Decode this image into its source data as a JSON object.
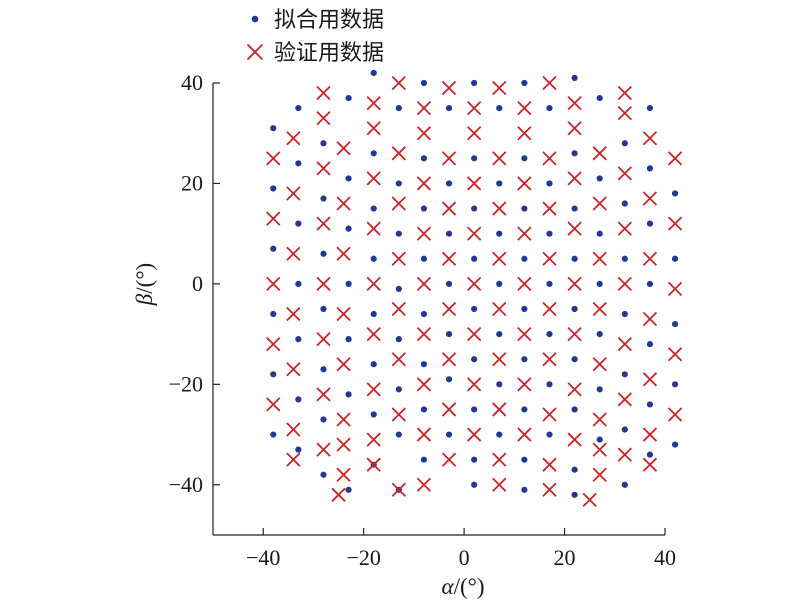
{
  "chart_data": {
    "type": "scatter",
    "xlabel_symbol": "α",
    "xlabel_unit": "/(°)",
    "ylabel_symbol": "β",
    "ylabel_unit": "/(°)",
    "xlim": [
      -50,
      40
    ],
    "ylim": [
      -50,
      40
    ],
    "xticks": [
      -40,
      -20,
      0,
      20,
      40
    ],
    "yticks": [
      -40,
      -20,
      0,
      20,
      40
    ],
    "xtick_labels": [
      "−40",
      "−20",
      "0",
      "20",
      "40"
    ],
    "ytick_labels": [
      "−40",
      "−20",
      "0",
      "20",
      "40"
    ],
    "legend_position": "top-left",
    "series": [
      {
        "name": "拟合用数据",
        "marker": "dot",
        "color": "#24388f",
        "points": [
          [
            -38,
            31
          ],
          [
            -38,
            19
          ],
          [
            -38,
            7
          ],
          [
            -38,
            -6
          ],
          [
            -38,
            -18
          ],
          [
            -38,
            -30
          ],
          [
            -33,
            35
          ],
          [
            -33,
            24
          ],
          [
            -33,
            12
          ],
          [
            -33,
            0
          ],
          [
            -33,
            -11
          ],
          [
            -33,
            -23
          ],
          [
            -33,
            -33
          ],
          [
            -28,
            28
          ],
          [
            -28,
            17
          ],
          [
            -28,
            6
          ],
          [
            -28,
            -5
          ],
          [
            -28,
            -17
          ],
          [
            -28,
            -27
          ],
          [
            -28,
            -38
          ],
          [
            -23,
            37
          ],
          [
            -23,
            21
          ],
          [
            -23,
            11
          ],
          [
            -23,
            0
          ],
          [
            -23,
            -11
          ],
          [
            -23,
            -22
          ],
          [
            -23,
            -41
          ],
          [
            -18,
            42
          ],
          [
            -18,
            26
          ],
          [
            -18,
            15
          ],
          [
            -18,
            5
          ],
          [
            -18,
            -6
          ],
          [
            -18,
            -16
          ],
          [
            -18,
            -26
          ],
          [
            -18,
            -36
          ],
          [
            -13,
            35
          ],
          [
            -13,
            20
          ],
          [
            -13,
            10
          ],
          [
            -13,
            -1
          ],
          [
            -13,
            -11
          ],
          [
            -13,
            -21
          ],
          [
            -13,
            -30
          ],
          [
            -13,
            -41
          ],
          [
            -8,
            40
          ],
          [
            -8,
            25
          ],
          [
            -8,
            15
          ],
          [
            -8,
            5
          ],
          [
            -8,
            -6
          ],
          [
            -8,
            -16
          ],
          [
            -8,
            -25
          ],
          [
            -8,
            -35
          ],
          [
            -3,
            35
          ],
          [
            -3,
            20
          ],
          [
            -3,
            10
          ],
          [
            -3,
            0
          ],
          [
            -3,
            -10
          ],
          [
            -3,
            -19
          ],
          [
            -3,
            -30
          ],
          [
            2,
            40
          ],
          [
            2,
            25
          ],
          [
            2,
            15
          ],
          [
            2,
            5
          ],
          [
            2,
            -5
          ],
          [
            2,
            -15
          ],
          [
            2,
            -25
          ],
          [
            2,
            -35
          ],
          [
            2,
            -40
          ],
          [
            7,
            35
          ],
          [
            7,
            20
          ],
          [
            7,
            10
          ],
          [
            7,
            0
          ],
          [
            7,
            -10
          ],
          [
            7,
            -20
          ],
          [
            7,
            -30
          ],
          [
            12,
            40
          ],
          [
            12,
            25
          ],
          [
            12,
            15
          ],
          [
            12,
            5
          ],
          [
            12,
            -5
          ],
          [
            12,
            -15
          ],
          [
            12,
            -25
          ],
          [
            12,
            -35
          ],
          [
            12,
            -41
          ],
          [
            17,
            35
          ],
          [
            17,
            20
          ],
          [
            17,
            10
          ],
          [
            17,
            0
          ],
          [
            17,
            -10
          ],
          [
            17,
            -20
          ],
          [
            17,
            -30
          ],
          [
            22,
            41
          ],
          [
            22,
            26
          ],
          [
            22,
            15
          ],
          [
            22,
            5
          ],
          [
            22,
            -5
          ],
          [
            22,
            -15
          ],
          [
            22,
            -25
          ],
          [
            22,
            -37
          ],
          [
            22,
            -42
          ],
          [
            27,
            37
          ],
          [
            27,
            21
          ],
          [
            27,
            10
          ],
          [
            27,
            0
          ],
          [
            27,
            -10
          ],
          [
            27,
            -21
          ],
          [
            27,
            -31
          ],
          [
            32,
            28
          ],
          [
            32,
            16
          ],
          [
            32,
            5
          ],
          [
            32,
            -6
          ],
          [
            32,
            -18
          ],
          [
            32,
            -29
          ],
          [
            32,
            -40
          ],
          [
            37,
            35
          ],
          [
            37,
            23
          ],
          [
            37,
            12
          ],
          [
            37,
            0
          ],
          [
            37,
            -12
          ],
          [
            37,
            -24
          ],
          [
            37,
            -34
          ],
          [
            42,
            18
          ],
          [
            42,
            5
          ],
          [
            42,
            -8
          ],
          [
            42,
            -20
          ],
          [
            42,
            -32
          ]
        ]
      },
      {
        "name": "验证用数据",
        "marker": "x",
        "color": "#c8242c",
        "points": [
          [
            -38,
            25
          ],
          [
            -38,
            13
          ],
          [
            -38,
            0
          ],
          [
            -38,
            -12
          ],
          [
            -38,
            -24
          ],
          [
            -34,
            29
          ],
          [
            -34,
            18
          ],
          [
            -34,
            6
          ],
          [
            -34,
            -6
          ],
          [
            -34,
            -17
          ],
          [
            -34,
            -29
          ],
          [
            -34,
            -35
          ],
          [
            -28,
            38
          ],
          [
            -28,
            33
          ],
          [
            -28,
            23
          ],
          [
            -28,
            12
          ],
          [
            -28,
            0
          ],
          [
            -28,
            -11
          ],
          [
            -28,
            -22
          ],
          [
            -28,
            -33
          ],
          [
            -24,
            27
          ],
          [
            -24,
            16
          ],
          [
            -24,
            6
          ],
          [
            -24,
            -6
          ],
          [
            -24,
            -16
          ],
          [
            -24,
            -27
          ],
          [
            -24,
            -32
          ],
          [
            -24,
            -38
          ],
          [
            -25,
            -42
          ],
          [
            -18,
            36
          ],
          [
            -18,
            31
          ],
          [
            -18,
            21
          ],
          [
            -18,
            11
          ],
          [
            -18,
            0
          ],
          [
            -18,
            -10
          ],
          [
            -18,
            -21
          ],
          [
            -18,
            -31
          ],
          [
            -18,
            -36
          ],
          [
            -13,
            40
          ],
          [
            -13,
            26
          ],
          [
            -13,
            16
          ],
          [
            -13,
            5
          ],
          [
            -13,
            -5
          ],
          [
            -13,
            -15
          ],
          [
            -13,
            -26
          ],
          [
            -13,
            -41
          ],
          [
            -8,
            35
          ],
          [
            -8,
            30
          ],
          [
            -8,
            20
          ],
          [
            -8,
            10
          ],
          [
            -8,
            0
          ],
          [
            -8,
            -10
          ],
          [
            -8,
            -20
          ],
          [
            -8,
            -30
          ],
          [
            -8,
            -40
          ],
          [
            -3,
            39
          ],
          [
            -3,
            25
          ],
          [
            -3,
            15
          ],
          [
            -3,
            5
          ],
          [
            -3,
            -5
          ],
          [
            -3,
            -15
          ],
          [
            -3,
            -25
          ],
          [
            -3,
            -35
          ],
          [
            2,
            35
          ],
          [
            2,
            30
          ],
          [
            2,
            20
          ],
          [
            2,
            10
          ],
          [
            2,
            0
          ],
          [
            2,
            -10
          ],
          [
            2,
            -20
          ],
          [
            2,
            -30
          ],
          [
            7,
            39
          ],
          [
            7,
            25
          ],
          [
            7,
            15
          ],
          [
            7,
            5
          ],
          [
            7,
            -5
          ],
          [
            7,
            -15
          ],
          [
            7,
            -25
          ],
          [
            7,
            -35
          ],
          [
            7,
            -40
          ],
          [
            12,
            35
          ],
          [
            12,
            30
          ],
          [
            12,
            20
          ],
          [
            12,
            10
          ],
          [
            12,
            0
          ],
          [
            12,
            -10
          ],
          [
            12,
            -20
          ],
          [
            12,
            -30
          ],
          [
            17,
            40
          ],
          [
            17,
            25
          ],
          [
            17,
            15
          ],
          [
            17,
            5
          ],
          [
            17,
            -5
          ],
          [
            17,
            -15
          ],
          [
            17,
            -26
          ],
          [
            17,
            -36
          ],
          [
            17,
            -41
          ],
          [
            22,
            36
          ],
          [
            22,
            31
          ],
          [
            22,
            21
          ],
          [
            22,
            11
          ],
          [
            22,
            0
          ],
          [
            22,
            -10
          ],
          [
            22,
            -21
          ],
          [
            22,
            -31
          ],
          [
            27,
            26
          ],
          [
            27,
            16
          ],
          [
            27,
            5
          ],
          [
            27,
            -5
          ],
          [
            27,
            -16
          ],
          [
            27,
            -27
          ],
          [
            27,
            -33
          ],
          [
            27,
            -38
          ],
          [
            25,
            -43
          ],
          [
            32,
            38
          ],
          [
            32,
            34
          ],
          [
            32,
            22
          ],
          [
            32,
            11
          ],
          [
            32,
            0
          ],
          [
            32,
            -12
          ],
          [
            32,
            -23
          ],
          [
            32,
            -34
          ],
          [
            37,
            29
          ],
          [
            37,
            17
          ],
          [
            37,
            5
          ],
          [
            37,
            -7
          ],
          [
            37,
            -19
          ],
          [
            37,
            -30
          ],
          [
            37,
            -36
          ],
          [
            42,
            25
          ],
          [
            42,
            12
          ],
          [
            42,
            -1
          ],
          [
            42,
            -14
          ],
          [
            42,
            -26
          ]
        ]
      }
    ]
  }
}
